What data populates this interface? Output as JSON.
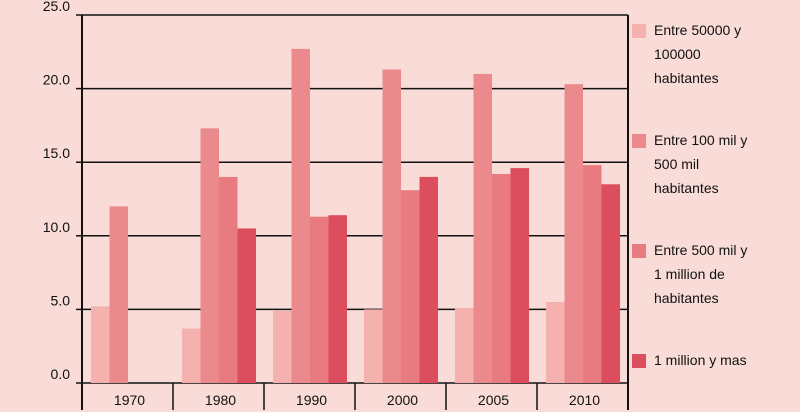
{
  "chart_data": {
    "type": "bar",
    "title": "",
    "xlabel": "",
    "ylabel": "",
    "ylim": [
      0,
      25
    ],
    "yticks": [
      "0.0",
      "5.0",
      "10.0",
      "15.0",
      "20.0",
      "25.0"
    ],
    "categories": [
      "1970",
      "1980",
      "1990",
      "2000",
      "2005",
      "2010"
    ],
    "grid": "horizontal",
    "legend_position": "right",
    "series": [
      {
        "name": "Entre 50000 y\n100000\nhabitantes",
        "color": "#f4b1ad",
        "values": [
          5.2,
          3.7,
          4.9,
          5.0,
          5.1,
          5.5
        ]
      },
      {
        "name": "Entre 100 mil y\n500 mil\nhabitantes",
        "color": "#ea8a8c",
        "values": [
          12.0,
          17.3,
          22.7,
          21.3,
          21.0,
          20.3
        ]
      },
      {
        "name": "Entre 500 mil y\n1 million de\nhabitantes",
        "color": "#e77b80",
        "values": [
          null,
          14.0,
          11.3,
          13.1,
          14.2,
          14.8
        ]
      },
      {
        "name": "1 million y mas",
        "color": "#dc4e5d",
        "values": [
          null,
          10.5,
          11.4,
          14.0,
          14.6,
          13.5
        ]
      }
    ]
  }
}
